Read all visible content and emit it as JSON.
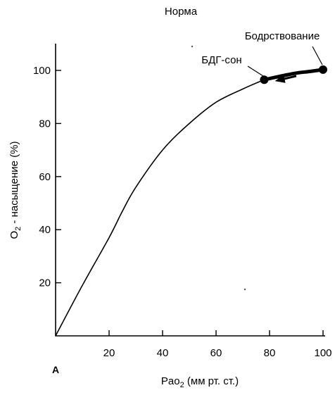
{
  "chart_data": {
    "type": "line",
    "title": "Норма",
    "panel_label": "А",
    "xlabel": {
      "main": "Pao",
      "sub": "2",
      "rest": " (мм рт. ст.)"
    },
    "ylabel": {
      "main": "O",
      "sub": "2",
      "rest": " - насыщение (%)"
    },
    "xlim": [
      0,
      100
    ],
    "ylim": [
      0,
      110
    ],
    "xticks": [
      20,
      40,
      60,
      80,
      100
    ],
    "yticks": [
      20,
      40,
      60,
      80,
      100
    ],
    "grid": false,
    "series": [
      {
        "name": "",
        "x": [
          0,
          10,
          20,
          25,
          30,
          40,
          50,
          60,
          70,
          78
        ],
        "y": [
          0,
          19,
          37,
          47,
          56,
          70,
          80,
          88,
          93,
          96.5
        ]
      },
      {
        "name": "",
        "x": [
          78,
          85,
          90,
          95,
          100
        ],
        "y": [
          96.5,
          98,
          99,
          99.6,
          100.3
        ]
      }
    ],
    "points": [
      {
        "label": "БДГ-сон",
        "x": 78,
        "y": 96.5
      },
      {
        "label": "Бодрствование",
        "x": 100,
        "y": 100.3
      }
    ],
    "arrow": {
      "from": [
        90,
        97.9
      ],
      "to": [
        82,
        96
      ]
    }
  }
}
